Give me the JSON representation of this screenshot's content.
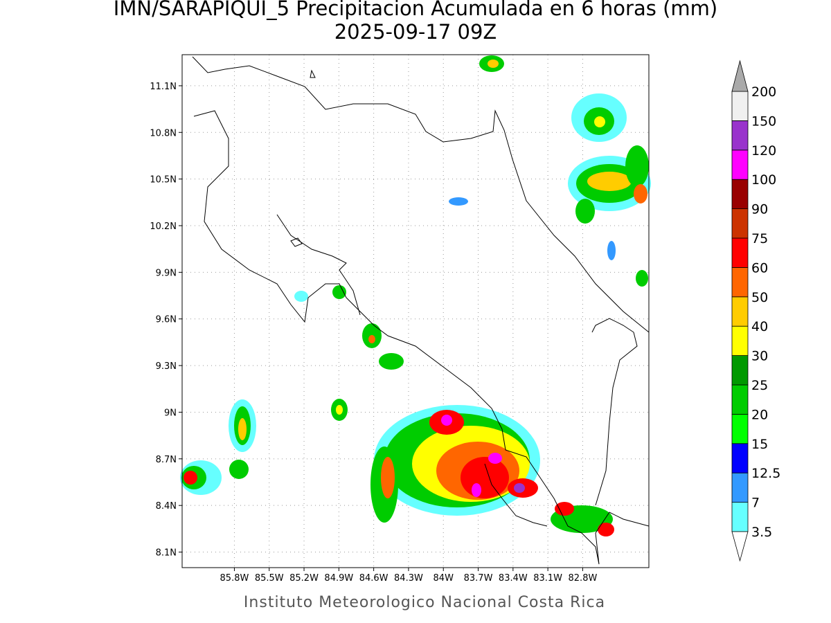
{
  "title": "IMN/SARAPIQUI_5 Precipitacion Acumulada en 6 horas (mm)",
  "subtitle": "2025-09-17 09Z",
  "footer": "Instituto Meteorologico Nacional Costa Rica",
  "map": {
    "xlim": [
      -86.25,
      -82.23
    ],
    "ylim": [
      8.0,
      11.3
    ],
    "xticks": [
      {
        "value": -85.8,
        "label": "85.8W"
      },
      {
        "value": -85.5,
        "label": "85.5W"
      },
      {
        "value": -85.2,
        "label": "85.2W"
      },
      {
        "value": -84.9,
        "label": "84.9W"
      },
      {
        "value": -84.6,
        "label": "84.6W"
      },
      {
        "value": -84.3,
        "label": "84.3W"
      },
      {
        "value": -84.0,
        "label": "84W"
      },
      {
        "value": -83.7,
        "label": "83.7W"
      },
      {
        "value": -83.4,
        "label": "83.4W"
      },
      {
        "value": -83.1,
        "label": "83.1W"
      },
      {
        "value": -82.8,
        "label": "82.8W"
      }
    ],
    "yticks": [
      {
        "value": 8.1,
        "label": "8.1N"
      },
      {
        "value": 8.4,
        "label": "8.4N"
      },
      {
        "value": 8.7,
        "label": "8.7N"
      },
      {
        "value": 9.0,
        "label": "9N"
      },
      {
        "value": 9.3,
        "label": "9.3N"
      },
      {
        "value": 9.6,
        "label": "9.6N"
      },
      {
        "value": 9.9,
        "label": "9.9N"
      },
      {
        "value": 10.2,
        "label": "10.2N"
      },
      {
        "value": 10.5,
        "label": "10.5N"
      },
      {
        "value": 10.8,
        "label": "10.8N"
      },
      {
        "value": 11.1,
        "label": "11.1N"
      }
    ],
    "grid": true
  },
  "colorbar": {
    "levels": [
      3.5,
      7,
      12.5,
      15,
      20,
      25,
      30,
      40,
      50,
      60,
      75,
      90,
      100,
      120,
      150,
      200
    ],
    "colors": [
      "#66ffff",
      "#3399ff",
      "#0000ff",
      "#00ff00",
      "#00cc00",
      "#009900",
      "#ffff00",
      "#ffcc00",
      "#ff6600",
      "#ff0000",
      "#cc3300",
      "#990000",
      "#ff00ff",
      "#9933cc",
      "#f0f0f0"
    ],
    "under_color": "#ffffff",
    "over_color": "#aaaaaa"
  }
}
